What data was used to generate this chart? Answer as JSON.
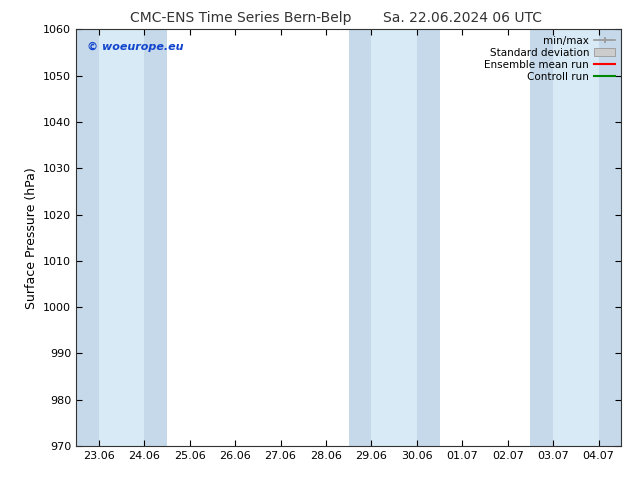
{
  "title": "CMC-ENS Time Series Bern-Belp",
  "title2": "Sa. 22.06.2024 06 UTC",
  "ylabel": "Surface Pressure (hPa)",
  "ylim": [
    970,
    1060
  ],
  "yticks": [
    970,
    980,
    990,
    1000,
    1010,
    1020,
    1030,
    1040,
    1050,
    1060
  ],
  "xtick_labels": [
    "23.06",
    "24.06",
    "25.06",
    "26.06",
    "27.06",
    "28.06",
    "29.06",
    "30.06",
    "01.07",
    "02.07",
    "03.07",
    "04.07"
  ],
  "xtick_positions": [
    0,
    1,
    2,
    3,
    4,
    5,
    6,
    7,
    8,
    9,
    10,
    11
  ],
  "xlim": [
    -0.5,
    11.5
  ],
  "shaded_bands_dark": [
    {
      "xmin": -0.5,
      "xmax": 0.0,
      "color": "#c5d9ea"
    },
    {
      "xmin": 0.0,
      "xmax": 0.5,
      "color": "#d8eaf5"
    },
    {
      "xmin": 0.5,
      "xmax": 1.0,
      "color": "#d8eaf5"
    },
    {
      "xmin": 1.0,
      "xmax": 1.5,
      "color": "#c5d9ea"
    },
    {
      "xmin": 5.5,
      "xmax": 6.0,
      "color": "#c5d9ea"
    },
    {
      "xmin": 6.0,
      "xmax": 6.5,
      "color": "#d8eaf5"
    },
    {
      "xmin": 6.5,
      "xmax": 7.0,
      "color": "#d8eaf5"
    },
    {
      "xmin": 7.0,
      "xmax": 7.5,
      "color": "#c5d9ea"
    },
    {
      "xmin": 9.5,
      "xmax": 10.0,
      "color": "#c5d9ea"
    },
    {
      "xmin": 10.0,
      "xmax": 10.5,
      "color": "#d8eaf5"
    },
    {
      "xmin": 10.5,
      "xmax": 11.0,
      "color": "#d8eaf5"
    },
    {
      "xmin": 11.0,
      "xmax": 11.5,
      "color": "#c5d9ea"
    }
  ],
  "watermark": "© woeurope.eu",
  "watermark_color": "#1144cc",
  "legend_labels": [
    "min/max",
    "Standard deviation",
    "Ensemble mean run",
    "Controll run"
  ],
  "minmax_color": "#999999",
  "stddev_color": "#cccccc",
  "ensemble_color": "#ff0000",
  "control_color": "#008800",
  "background_color": "#ffffff",
  "figsize": [
    6.34,
    4.9
  ],
  "dpi": 100,
  "title_fontsize": 10,
  "ylabel_fontsize": 9,
  "tick_fontsize": 8,
  "legend_fontsize": 7.5
}
